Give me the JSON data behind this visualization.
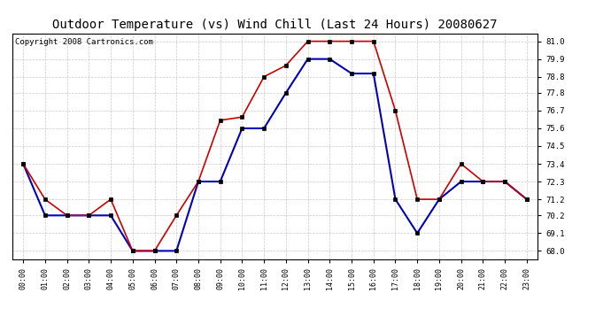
{
  "title": "Outdoor Temperature (vs) Wind Chill (Last 24 Hours) 20080627",
  "copyright": "Copyright 2008 Cartronics.com",
  "x_labels": [
    "00:00",
    "01:00",
    "02:00",
    "03:00",
    "04:00",
    "05:00",
    "06:00",
    "07:00",
    "08:00",
    "09:00",
    "10:00",
    "11:00",
    "12:00",
    "13:00",
    "14:00",
    "15:00",
    "16:00",
    "17:00",
    "18:00",
    "19:00",
    "20:00",
    "21:00",
    "22:00",
    "23:00"
  ],
  "temp_red": [
    73.4,
    71.2,
    70.2,
    70.2,
    71.2,
    68.0,
    68.0,
    70.2,
    72.3,
    76.1,
    76.3,
    78.8,
    79.5,
    81.0,
    81.0,
    81.0,
    81.0,
    76.7,
    71.2,
    71.2,
    73.4,
    72.3,
    72.3,
    71.2
  ],
  "wind_blue": [
    73.4,
    70.2,
    70.2,
    70.2,
    70.2,
    68.0,
    68.0,
    68.0,
    72.3,
    72.3,
    75.6,
    75.6,
    77.8,
    79.9,
    79.9,
    79.0,
    79.0,
    71.2,
    69.1,
    71.2,
    72.3,
    72.3,
    72.3,
    71.2
  ],
  "ylim": [
    67.5,
    81.5
  ],
  "yticks": [
    68.0,
    69.1,
    70.2,
    71.2,
    72.3,
    73.4,
    74.5,
    75.6,
    76.7,
    77.8,
    78.8,
    79.9,
    81.0
  ],
  "red_color": "#cc0000",
  "blue_color": "#0000bb",
  "bg_color": "#ffffff",
  "grid_color": "#bbbbbb",
  "title_fontsize": 10,
  "copyright_fontsize": 6.5
}
